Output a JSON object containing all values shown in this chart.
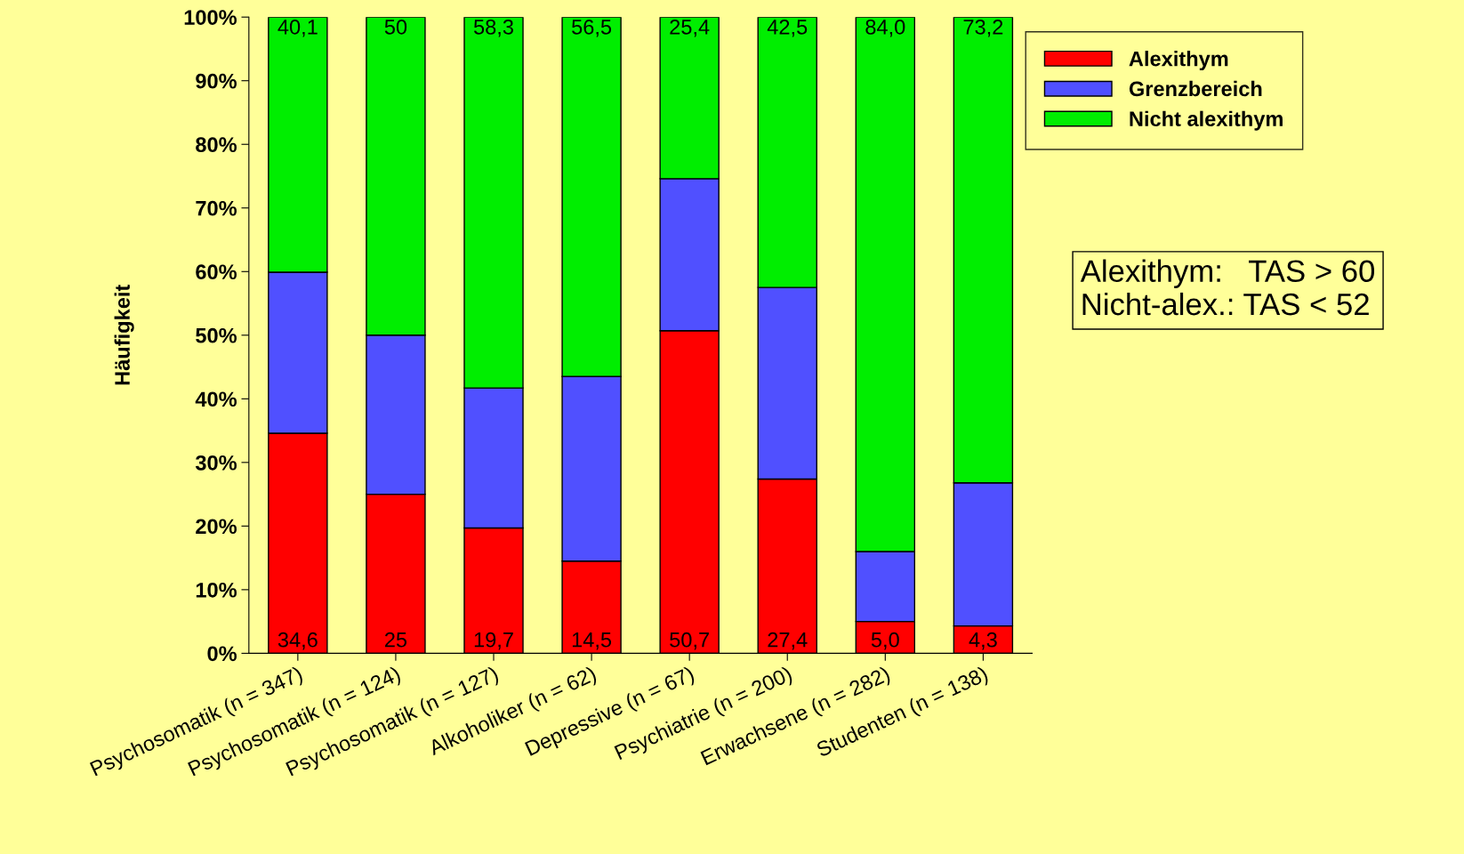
{
  "chart_data": {
    "type": "bar",
    "stacked": true,
    "ylabel": "Häufigkeit",
    "categories": [
      "Psychosomatik (n = 347)",
      "Psychosomatik (n = 124)",
      "Psychosomatik (n = 127)",
      "Alkoholiker (n = 62)",
      "Depressive (n = 67)",
      "Psychiatrie (n = 200)",
      "Erwachsene (n = 282)",
      "Studenten (n = 138)"
    ],
    "series": [
      {
        "name": "Alexithym",
        "color": "#ff0000",
        "values": [
          34.6,
          25,
          19.7,
          14.5,
          50.7,
          27.4,
          5.0,
          4.3
        ],
        "value_labels": [
          "34,6",
          "25",
          "19,7",
          "14,5",
          "50,7",
          "27,4",
          "5,0",
          "4,3"
        ]
      },
      {
        "name": "Grenzbereich",
        "color": "#5050ff",
        "values": [
          25.3,
          25,
          22.0,
          29.0,
          23.9,
          30.1,
          11.0,
          22.5
        ]
      },
      {
        "name": "Nicht alexithym",
        "color": "#00ee00",
        "values": [
          40.1,
          50,
          58.3,
          56.5,
          25.4,
          42.5,
          84.0,
          73.2
        ],
        "value_labels": [
          "40,1",
          "50",
          "58,3",
          "56,5",
          "25,4",
          "42,5",
          "84,0",
          "73,2"
        ]
      }
    ],
    "ylim": [
      0,
      100
    ],
    "yticks": [
      {
        "value": 0,
        "label": "0%"
      },
      {
        "value": 10,
        "label": "10%"
      },
      {
        "value": 20,
        "label": "20%"
      },
      {
        "value": 30,
        "label": "30%"
      },
      {
        "value": 40,
        "label": "40%"
      },
      {
        "value": 50,
        "label": "50%"
      },
      {
        "value": 60,
        "label": "60%"
      },
      {
        "value": 70,
        "label": "70%"
      },
      {
        "value": 80,
        "label": "80%"
      },
      {
        "value": 90,
        "label": "90%"
      },
      {
        "value": 100,
        "label": "100%"
      }
    ],
    "legend": "top right",
    "grid": false,
    "annotations": [
      "Alexithym:   TAS > 60\nNicht-alex.: TAS < 52"
    ]
  }
}
